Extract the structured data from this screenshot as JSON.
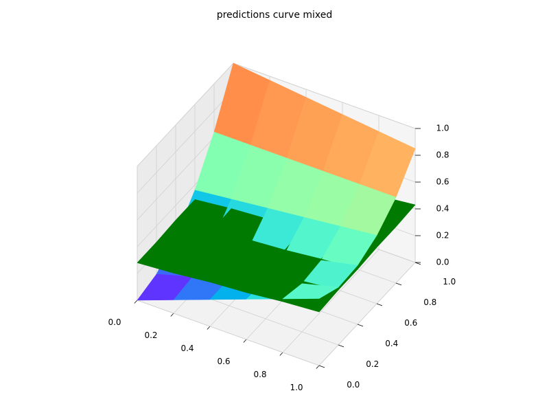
{
  "chart_data": {
    "type": "surface3d",
    "title": "predictions curve mixed",
    "x": [
      0,
      0.2,
      0.4,
      0.6,
      0.8,
      1
    ],
    "y": [
      0,
      0.2,
      0.4,
      0.6,
      0.8,
      1
    ],
    "xlim": [
      0,
      1
    ],
    "ylim": [
      0,
      1
    ],
    "zlim": [
      0,
      1
    ],
    "xticks": [
      {
        "value": 0,
        "label": "0.0"
      },
      0.2,
      0.4,
      0.6,
      0.8,
      {
        "value": 1,
        "label": "1.0"
      }
    ],
    "yticks": [
      {
        "value": 0,
        "label": "0.0"
      },
      0.2,
      0.4,
      0.6,
      0.8,
      {
        "value": 1,
        "label": "1.0"
      }
    ],
    "zticks": [
      {
        "value": 0,
        "label": "0.0"
      },
      0.2,
      0.4,
      0.6,
      0.8,
      {
        "value": 1,
        "label": "1.0"
      }
    ],
    "grid": true,
    "surfaces": [
      {
        "cmap": "rainbow",
        "z": [
          [
            0,
            0.1,
            0.2,
            0.3,
            0.4,
            0.5
          ],
          [
            0.04,
            0.12,
            0.2,
            0.28,
            0.36,
            0.43
          ],
          [
            0.16,
            0.22,
            0.27,
            0.33,
            0.38,
            0.44
          ],
          [
            0.36,
            0.39,
            0.42,
            0.45,
            0.48,
            0.51
          ],
          [
            0.64,
            0.64,
            0.64,
            0.64,
            0.64,
            0.64
          ],
          [
            1,
            0.97,
            0.94,
            0.91,
            0.88,
            0.85
          ]
        ]
      },
      {
        "color": "#007a00",
        "z": [
          [
            0.28,
            0.3,
            0.33,
            0.35,
            0.38,
            0.4
          ],
          [
            0.28,
            0.31,
            0.33,
            0.36,
            0.38,
            0.41
          ],
          [
            0.29,
            0.31,
            0.34,
            0.36,
            0.39,
            0.41
          ],
          [
            0.29,
            0.32,
            0.34,
            0.37,
            0.39,
            0.42
          ],
          [
            0.3,
            0.32,
            0.35,
            0.37,
            0.4,
            0.42
          ],
          [
            0.3,
            0.33,
            0.35,
            0.38,
            0.4,
            0.43
          ]
        ]
      }
    ]
  }
}
